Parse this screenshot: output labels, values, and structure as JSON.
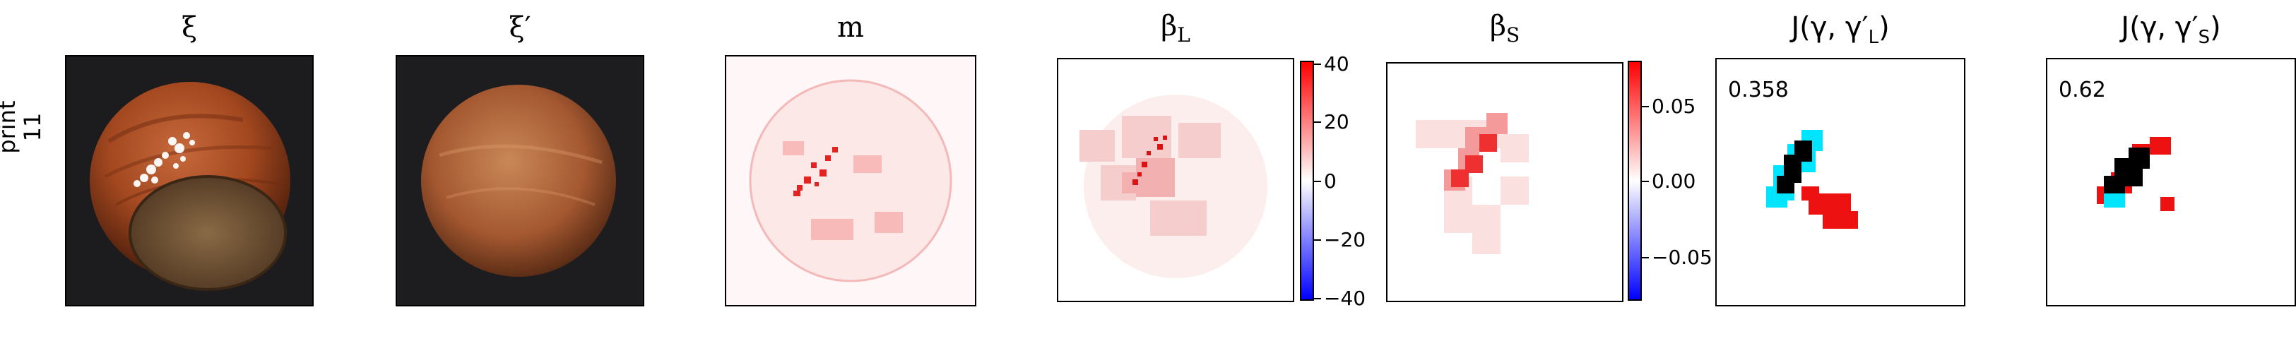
{
  "row_label": [
    "print",
    "11"
  ],
  "panels": {
    "xi": {
      "title": "ξ"
    },
    "xi_prime": {
      "title": "ξ′"
    },
    "m": {
      "title": "m"
    },
    "beta_L": {
      "title": "β",
      "sub": "L"
    },
    "beta_S": {
      "title": "β",
      "sub": "S"
    },
    "J_L": {
      "title_pre": "J(γ, γ′",
      "title_sub": "L",
      "title_post": ")",
      "score": "0.358"
    },
    "J_S": {
      "title_pre": "J(γ, γ′",
      "title_sub": "S",
      "title_post": ")",
      "score": "0.62"
    }
  },
  "colorbar_L": {
    "ticks": [
      "40",
      "20",
      "0",
      "−20",
      "−40"
    ]
  },
  "colorbar_S": {
    "ticks": [
      "0.05",
      "0.00",
      "−0.05"
    ]
  },
  "colors": {
    "red": "#ff0000",
    "blue": "#0000ff",
    "cyan": "#00e5ff",
    "black": "#000000"
  }
}
